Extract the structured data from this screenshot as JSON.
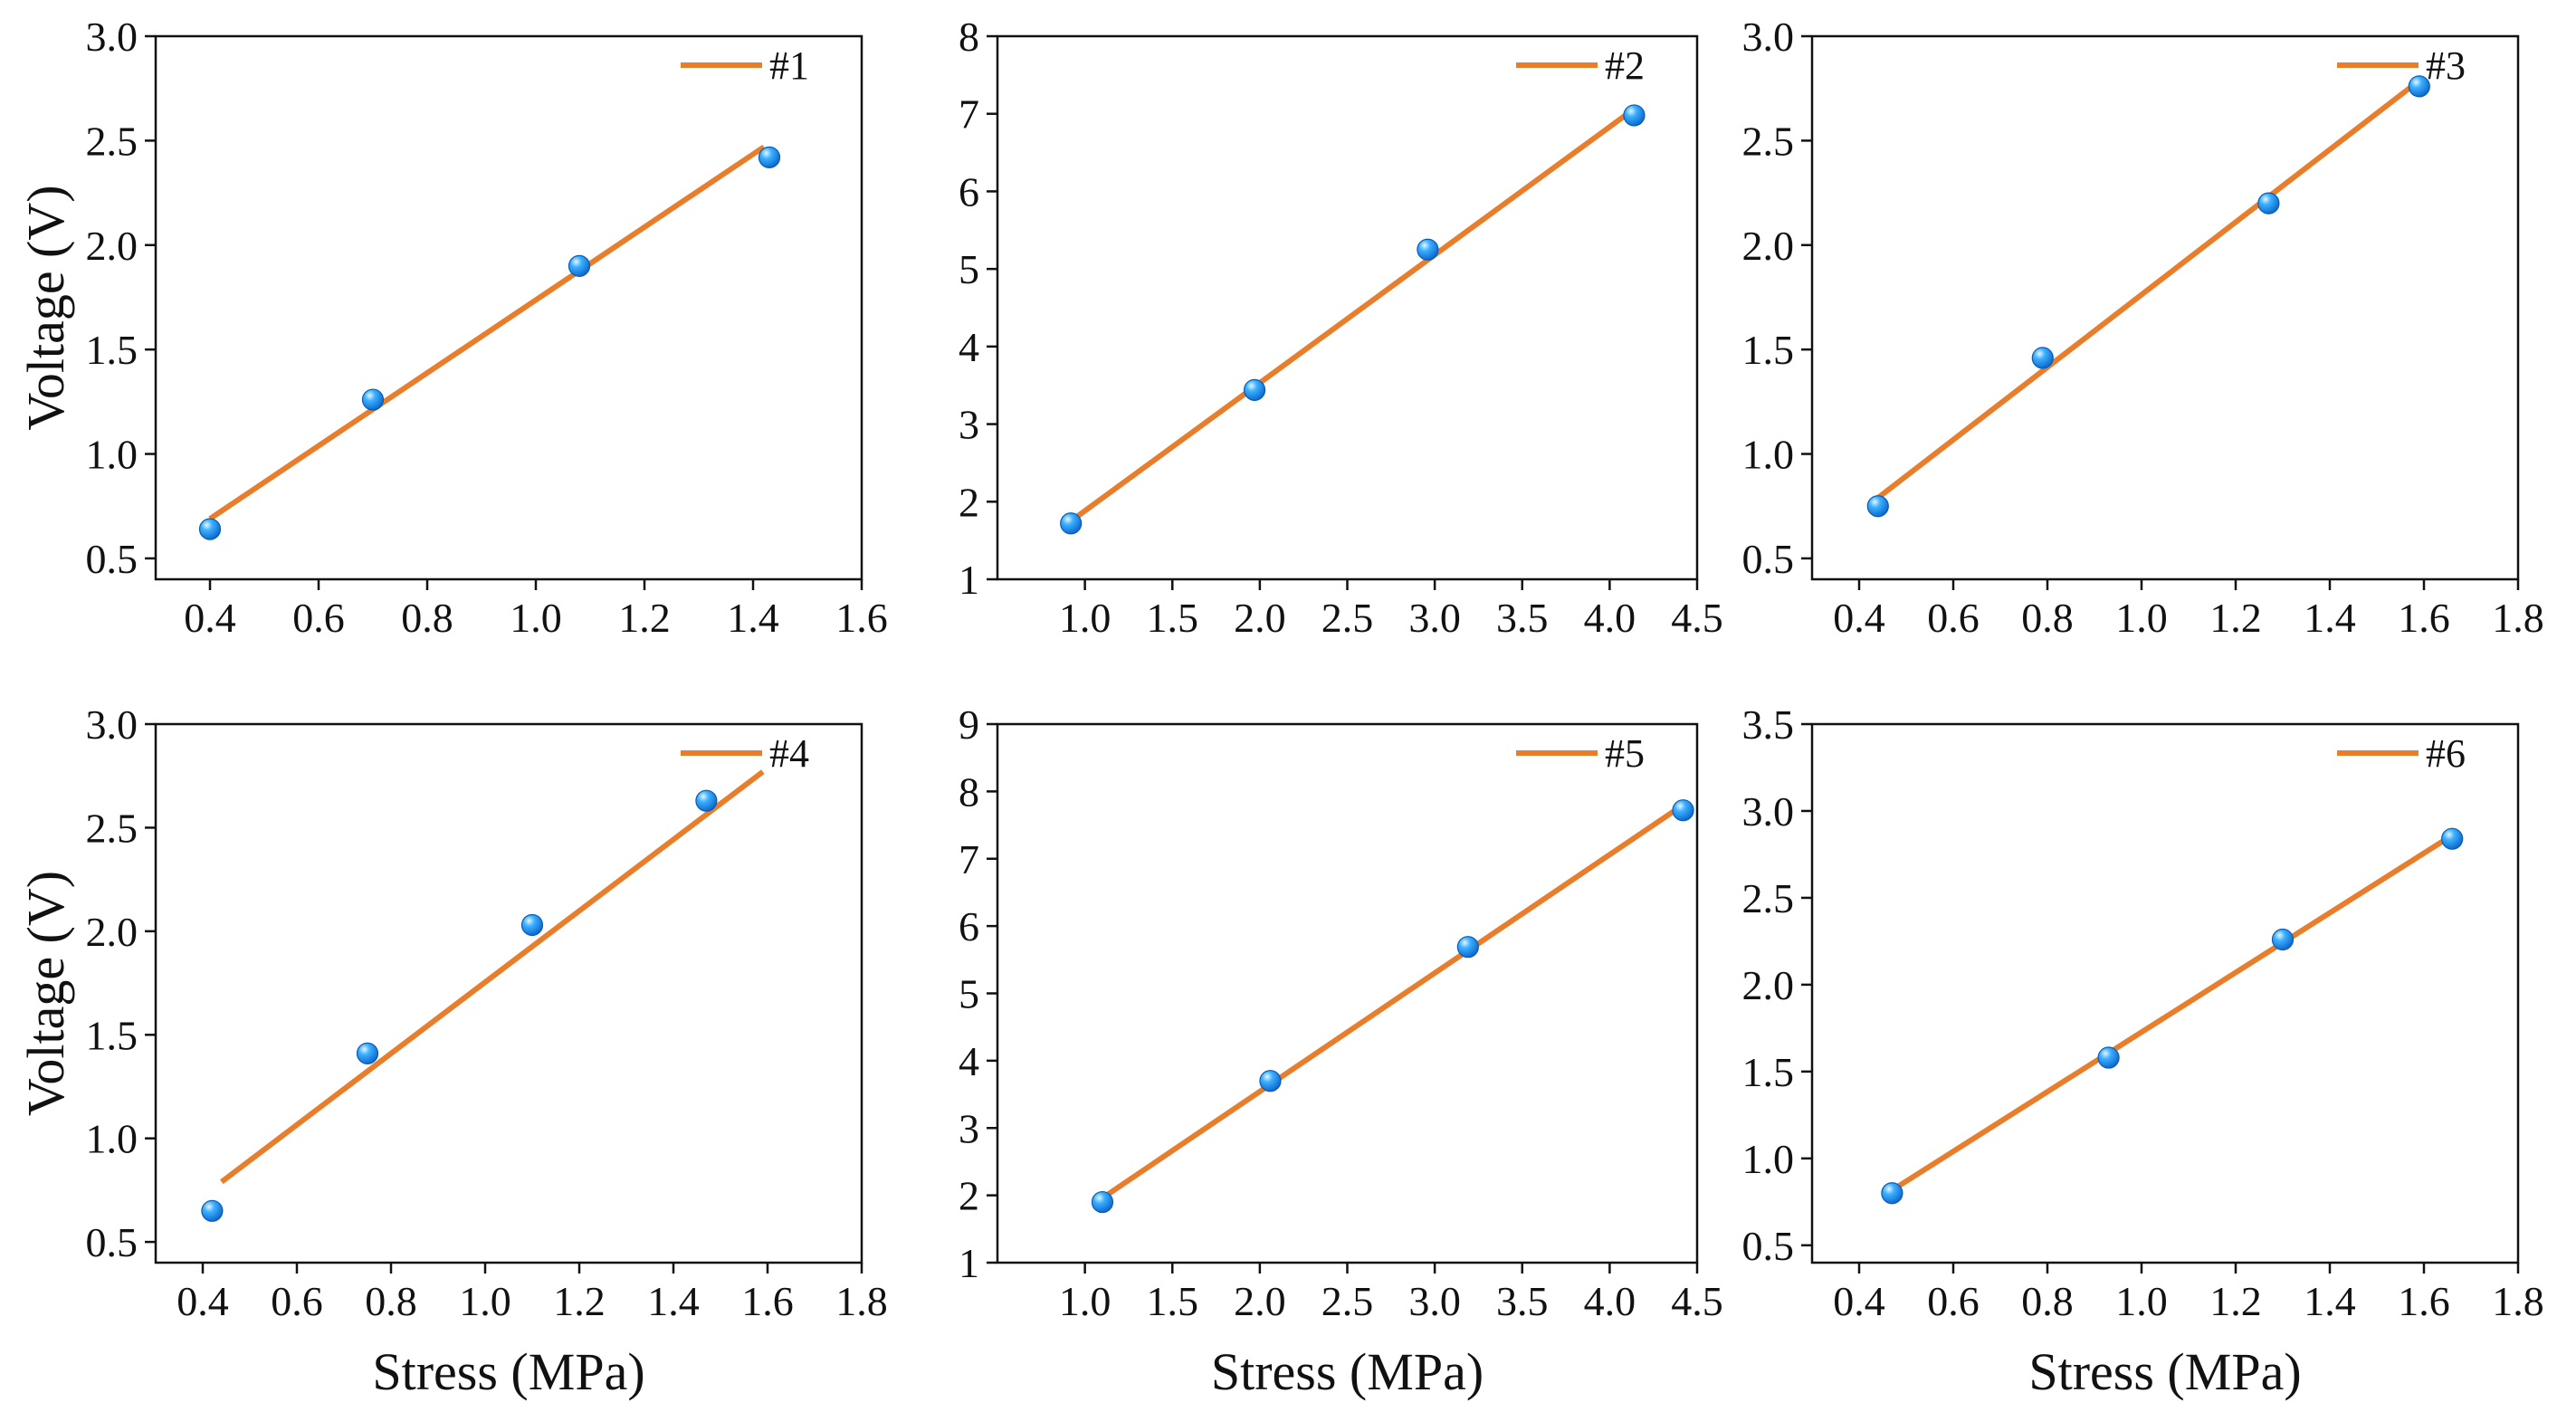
{
  "figure": {
    "line_color": "#E87E2C",
    "marker_color": "#1E90FF",
    "marker_highlight": "#BFE6FF",
    "axis_color": "#111111"
  },
  "chart_data": [
    {
      "type": "scatter",
      "legend": "#1",
      "xlabel": "",
      "ylabel": "Voltage (V)",
      "xlim": [
        0.3,
        1.6
      ],
      "ylim": [
        0.4,
        3.0
      ],
      "xticks": [
        0.4,
        0.6,
        0.8,
        1.0,
        1.2,
        1.4,
        1.6
      ],
      "xtick_labels": [
        "0.4",
        "0.6",
        "0.8",
        "1.0",
        "1.2",
        "1.4",
        "1.6"
      ],
      "yticks": [
        0.5,
        1.0,
        1.5,
        2.0,
        2.5,
        3.0
      ],
      "ytick_labels": [
        "0.5",
        "1.0",
        "1.5",
        "2.0",
        "2.5",
        "3.0"
      ],
      "x": [
        0.4,
        0.7,
        1.08,
        1.43
      ],
      "y": [
        0.64,
        1.26,
        1.9,
        2.42
      ],
      "fit": {
        "x": [
          0.4,
          1.42
        ],
        "y": [
          0.69,
          2.47
        ]
      }
    },
    {
      "type": "scatter",
      "legend": "#2",
      "xlabel": "",
      "ylabel": "",
      "xlim": [
        0.5,
        4.5
      ],
      "ylim": [
        1,
        8
      ],
      "xticks": [
        1.0,
        1.5,
        2.0,
        2.5,
        3.0,
        3.5,
        4.0,
        4.5
      ],
      "xtick_labels": [
        "1.0",
        "1.5",
        "2.0",
        "2.5",
        "3.0",
        "3.5",
        "4.0",
        "4.5"
      ],
      "yticks": [
        1,
        2,
        3,
        4,
        5,
        6,
        7,
        8
      ],
      "ytick_labels": [
        "1",
        "2",
        "3",
        "4",
        "5",
        "6",
        "7",
        "8"
      ],
      "x": [
        0.92,
        1.97,
        2.96,
        4.14
      ],
      "y": [
        1.72,
        3.44,
        5.25,
        6.98
      ],
      "fit": {
        "x": [
          0.92,
          4.12
        ],
        "y": [
          1.75,
          7.03
        ]
      }
    },
    {
      "type": "scatter",
      "legend": "#3",
      "xlabel": "",
      "ylabel": "",
      "xlim": [
        0.3,
        1.8
      ],
      "ylim": [
        0.4,
        3.0
      ],
      "xticks": [
        0.4,
        0.6,
        0.8,
        1.0,
        1.2,
        1.4,
        1.6,
        1.8
      ],
      "xtick_labels": [
        "0.4",
        "0.6",
        "0.8",
        "1.0",
        "1.2",
        "1.4",
        "1.6",
        "1.8"
      ],
      "yticks": [
        0.5,
        1.0,
        1.5,
        2.0,
        2.5,
        3.0
      ],
      "ytick_labels": [
        "0.5",
        "1.0",
        "1.5",
        "2.0",
        "2.5",
        "3.0"
      ],
      "x": [
        0.44,
        0.79,
        1.27,
        1.59
      ],
      "y": [
        0.75,
        1.46,
        2.2,
        2.76
      ],
      "fit": {
        "x": [
          0.44,
          1.58
        ],
        "y": [
          0.79,
          2.77
        ]
      }
    },
    {
      "type": "scatter",
      "legend": "#4",
      "xlabel": "Stress (MPa)",
      "ylabel": "Voltage (V)",
      "xlim": [
        0.3,
        1.8
      ],
      "ylim": [
        0.4,
        3.0
      ],
      "xticks": [
        0.4,
        0.6,
        0.8,
        1.0,
        1.2,
        1.4,
        1.6,
        1.8
      ],
      "xtick_labels": [
        "0.4",
        "0.6",
        "0.8",
        "1.0",
        "1.2",
        "1.4",
        "1.6",
        "1.8"
      ],
      "yticks": [
        0.5,
        1.0,
        1.5,
        2.0,
        2.5,
        3.0
      ],
      "ytick_labels": [
        "0.5",
        "1.0",
        "1.5",
        "2.0",
        "2.5",
        "3.0"
      ],
      "x": [
        0.42,
        0.75,
        1.1,
        1.47
      ],
      "y": [
        0.65,
        1.41,
        2.03,
        2.63
      ],
      "fit": {
        "x": [
          0.44,
          1.59
        ],
        "y": [
          0.79,
          2.77
        ]
      }
    },
    {
      "type": "scatter",
      "legend": "#5",
      "xlabel": "Stress (MPa)",
      "ylabel": "",
      "xlim": [
        0.5,
        4.5
      ],
      "ylim": [
        1,
        9
      ],
      "xticks": [
        1.0,
        1.5,
        2.0,
        2.5,
        3.0,
        3.5,
        4.0,
        4.5
      ],
      "xtick_labels": [
        "1.0",
        "1.5",
        "2.0",
        "2.5",
        "3.0",
        "3.5",
        "4.0",
        "4.5"
      ],
      "yticks": [
        1,
        2,
        3,
        4,
        5,
        6,
        7,
        8,
        9
      ],
      "ytick_labels": [
        "1",
        "2",
        "3",
        "4",
        "5",
        "6",
        "7",
        "8",
        "9"
      ],
      "x": [
        1.1,
        2.06,
        3.19,
        4.42
      ],
      "y": [
        1.9,
        3.7,
        5.69,
        7.72
      ],
      "fit": {
        "x": [
          1.1,
          4.42
        ],
        "y": [
          1.96,
          7.8
        ]
      }
    },
    {
      "type": "scatter",
      "legend": "#6",
      "xlabel": "Stress (MPa)",
      "ylabel": "",
      "xlim": [
        0.3,
        1.8
      ],
      "ylim": [
        0.4,
        3.5
      ],
      "xticks": [
        0.4,
        0.6,
        0.8,
        1.0,
        1.2,
        1.4,
        1.6,
        1.8
      ],
      "xtick_labels": [
        "0.4",
        "0.6",
        "0.8",
        "1.0",
        "1.2",
        "1.4",
        "1.6",
        "1.8"
      ],
      "yticks": [
        0.5,
        1.0,
        1.5,
        2.0,
        2.5,
        3.0,
        3.5
      ],
      "ytick_labels": [
        "0.5",
        "1.0",
        "1.5",
        "2.0",
        "2.5",
        "3.0",
        "3.5"
      ],
      "x": [
        0.47,
        0.93,
        1.3,
        1.66
      ],
      "y": [
        0.8,
        1.58,
        2.26,
        2.84
      ],
      "fit": {
        "x": [
          0.46,
          1.66
        ],
        "y": [
          0.8,
          2.86
        ]
      }
    }
  ]
}
